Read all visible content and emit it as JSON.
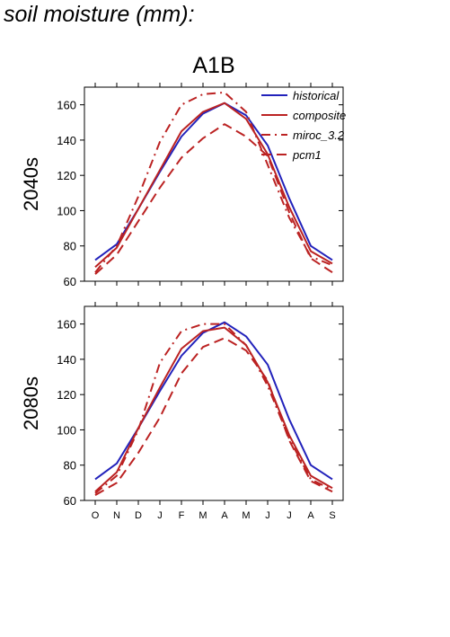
{
  "page": {
    "title": "soil moisture (mm):"
  },
  "figure": {
    "scenario": "A1B"
  },
  "colors": {
    "historical": "#2222bb",
    "projection": "#bb2222"
  },
  "chart_data": [
    {
      "type": "line",
      "panel_label": "2040s",
      "scenario": "A1B",
      "categories": [
        "O",
        "N",
        "D",
        "J",
        "F",
        "M",
        "A",
        "M",
        "J",
        "J",
        "A",
        "S"
      ],
      "ylim": [
        60,
        170
      ],
      "yticks": [
        60,
        80,
        100,
        120,
        140,
        160
      ],
      "grid": false,
      "legend": "top-right",
      "series": [
        {
          "name": "historical",
          "style": "solid",
          "color": "#2222bb",
          "values": [
            72,
            81,
            101,
            122,
            142,
            155,
            161,
            154,
            137,
            107,
            80,
            72
          ]
        },
        {
          "name": "composite",
          "style": "solid",
          "color": "#bb2222",
          "values": [
            68,
            79,
            101,
            123,
            145,
            156,
            161,
            152,
            132,
            102,
            77,
            70
          ]
        },
        {
          "name": "miroc_3.2",
          "style": "dashdot",
          "color": "#bb2222",
          "values": [
            65,
            80,
            108,
            139,
            160,
            166,
            167,
            156,
            126,
            96,
            74,
            69
          ]
        },
        {
          "name": "pcm1",
          "style": "dashed",
          "color": "#bb2222",
          "values": [
            64,
            75,
            94,
            113,
            130,
            141,
            149,
            142,
            131,
            99,
            73,
            65
          ]
        }
      ]
    },
    {
      "type": "line",
      "panel_label": "2080s",
      "scenario": "A1B",
      "categories": [
        "O",
        "N",
        "D",
        "J",
        "F",
        "M",
        "A",
        "M",
        "J",
        "J",
        "A",
        "S"
      ],
      "ylim": [
        60,
        170
      ],
      "yticks": [
        60,
        80,
        100,
        120,
        140,
        160
      ],
      "grid": false,
      "series": [
        {
          "name": "historical",
          "style": "solid",
          "color": "#2222bb",
          "values": [
            72,
            81,
            101,
            122,
            142,
            155,
            161,
            153,
            137,
            106,
            80,
            72
          ]
        },
        {
          "name": "composite",
          "style": "solid",
          "color": "#bb2222",
          "values": [
            65,
            76,
            101,
            124,
            146,
            156,
            158,
            148,
            127,
            97,
            74,
            67
          ]
        },
        {
          "name": "miroc_3.2",
          "style": "dashdot",
          "color": "#bb2222",
          "values": [
            64,
            74,
            100,
            138,
            156,
            160,
            160,
            148,
            125,
            95,
            72,
            66
          ]
        },
        {
          "name": "pcm1",
          "style": "dashed",
          "color": "#bb2222",
          "values": [
            63,
            70,
            87,
            107,
            132,
            147,
            152,
            145,
            128,
            94,
            71,
            65
          ]
        }
      ]
    }
  ]
}
